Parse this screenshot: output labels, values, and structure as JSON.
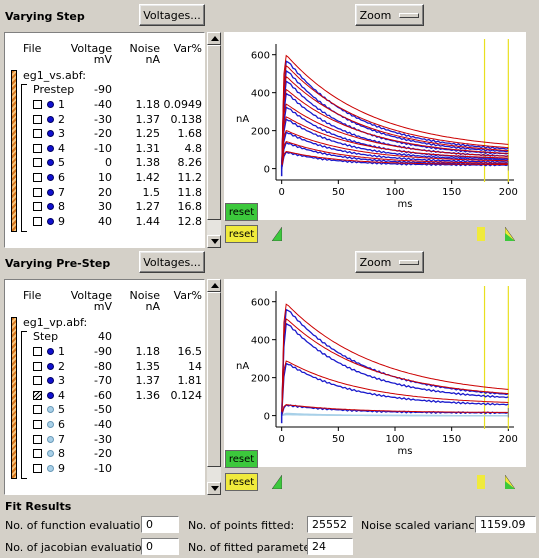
{
  "panel1": {
    "title": "Varying Step",
    "voltages_label": "Voltages...",
    "zoom_label": "Zoom",
    "headers": {
      "file": "File",
      "voltage": "Voltage",
      "voltage_unit": "mV",
      "noise": "Noise",
      "noise_unit": "nA",
      "var": "Var%"
    },
    "file_name": "eg1_vs.abf:",
    "group_label": "Prestep",
    "group_value": "-90",
    "rows": [
      {
        "n": "1",
        "v": "-40",
        "noise": "1.18",
        "var": "0.0949"
      },
      {
        "n": "2",
        "v": "-30",
        "noise": "1.37",
        "var": "0.138"
      },
      {
        "n": "3",
        "v": "-20",
        "noise": "1.25",
        "var": "1.68"
      },
      {
        "n": "4",
        "v": "-10",
        "noise": "1.31",
        "var": "4.8"
      },
      {
        "n": "5",
        "v": "0",
        "noise": "1.38",
        "var": "8.26"
      },
      {
        "n": "6",
        "v": "10",
        "noise": "1.42",
        "var": "11.2"
      },
      {
        "n": "7",
        "v": "20",
        "noise": "1.5",
        "var": "11.8"
      },
      {
        "n": "8",
        "v": "30",
        "noise": "1.27",
        "var": "16.8"
      },
      {
        "n": "9",
        "v": "40",
        "noise": "1.44",
        "var": "12.8"
      }
    ],
    "reset_label": "reset",
    "chart": {
      "ylabel": "nA",
      "xlabel": "ms",
      "yticks": [
        "600",
        "400",
        "200",
        "0"
      ],
      "xticks": [
        "0",
        "50",
        "100",
        "150",
        "200"
      ]
    }
  },
  "panel2": {
    "title": "Varying Pre-Step",
    "voltages_label": "Voltages...",
    "zoom_label": "Zoom",
    "headers": {
      "file": "File",
      "voltage": "Voltage",
      "voltage_unit": "mV",
      "noise": "Noise",
      "noise_unit": "nA",
      "var": "Var%"
    },
    "file_name": "eg1_vp.abf:",
    "group_label": "Step",
    "group_value": "40",
    "rows": [
      {
        "n": "1",
        "v": "-90",
        "noise": "1.18",
        "var": "16.5",
        "active": true
      },
      {
        "n": "2",
        "v": "-80",
        "noise": "1.35",
        "var": "14",
        "active": true
      },
      {
        "n": "3",
        "v": "-70",
        "noise": "1.37",
        "var": "1.81",
        "active": true
      },
      {
        "n": "4",
        "v": "-60",
        "noise": "1.36",
        "var": "0.124",
        "active": true
      },
      {
        "n": "5",
        "v": "-50",
        "noise": "",
        "var": "",
        "active": false
      },
      {
        "n": "6",
        "v": "-40",
        "noise": "",
        "var": "",
        "active": false
      },
      {
        "n": "7",
        "v": "-30",
        "noise": "",
        "var": "",
        "active": false
      },
      {
        "n": "8",
        "v": "-20",
        "noise": "",
        "var": "",
        "active": false
      },
      {
        "n": "9",
        "v": "-10",
        "noise": "",
        "var": "",
        "active": false
      }
    ],
    "reset_label": "reset",
    "chart": {
      "ylabel": "nA",
      "xlabel": "ms",
      "yticks": [
        "600",
        "400",
        "200",
        "0"
      ],
      "xticks": [
        "0",
        "50",
        "100",
        "150",
        "200"
      ]
    }
  },
  "fit": {
    "title": "Fit Results",
    "func_eval_label": "No. of function evaluations:",
    "func_eval_value": "0",
    "jac_eval_label": "No. of jacobian evaluations:",
    "jac_eval_value": "0",
    "points_label": "No. of points fitted:",
    "points_value": "25552",
    "params_label": "No. of fitted parameters:",
    "params_value": "24",
    "variance_label": "Noise scaled variance:",
    "variance_value": "1159.09"
  },
  "colors": {
    "fit_line": "#cc0000",
    "data_line": "#1a1acc",
    "inactive_trace": "#a8d0e8",
    "dot_active": "#1010d0",
    "dot_inactive": "#a8d0e8",
    "cursor": "#e8e020"
  }
}
